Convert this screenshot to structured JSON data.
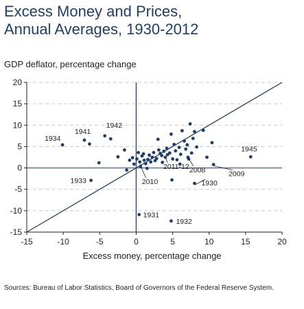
{
  "chart_data": {
    "type": "scatter",
    "title_line1": "Excess Money and Prices,",
    "title_line2": "Annual Averages, 1930-2012",
    "xlabel": "Excess money, percentage change",
    "ylabel": "GDP deflator, percentage change",
    "xlim": [
      -15,
      20
    ],
    "ylim": [
      -15,
      20
    ],
    "x_ticks": [
      -15,
      -10,
      -5,
      0,
      5,
      10,
      15,
      20
    ],
    "y_ticks": [
      -15,
      -10,
      -5,
      0,
      5,
      10,
      15,
      20
    ],
    "x_tick_labels": [
      "-15",
      "-10",
      "-5",
      "0",
      "5",
      "10",
      "15",
      "20"
    ],
    "y_tick_labels": [
      "-15",
      "-10",
      "-5",
      "0",
      "5",
      "10",
      "15",
      "20"
    ],
    "grid": "horizontal dashed",
    "reference_line": "45-degree line (y = x)",
    "marker_color": "#1f3f6b",
    "line_color": "#1f3f6b",
    "points": [
      {
        "x": -10.1,
        "y": 5.4,
        "label": "1934"
      },
      {
        "x": -7.1,
        "y": 6.5,
        "label": "1941"
      },
      {
        "x": -6.4,
        "y": 5.6
      },
      {
        "x": -4.3,
        "y": 7.5,
        "label": "1942"
      },
      {
        "x": -3.5,
        "y": 6.8
      },
      {
        "x": -5.1,
        "y": 1.2
      },
      {
        "x": -6.2,
        "y": -2.9,
        "label": "1933"
      },
      {
        "x": -2.5,
        "y": 2.6
      },
      {
        "x": -1.6,
        "y": 4.2
      },
      {
        "x": -1.3,
        "y": -0.5
      },
      {
        "x": -0.9,
        "y": 1.8
      },
      {
        "x": -0.5,
        "y": 2.4
      },
      {
        "x": -0.3,
        "y": 0.9
      },
      {
        "x": 0.1,
        "y": 2.1
      },
      {
        "x": 0.3,
        "y": 3.6
      },
      {
        "x": 0.5,
        "y": 1.4
      },
      {
        "x": 0.6,
        "y": 0.4,
        "label": "2010"
      },
      {
        "x": 0.8,
        "y": 2.8
      },
      {
        "x": 1.0,
        "y": 3.3
      },
      {
        "x": 1.1,
        "y": 1.8
      },
      {
        "x": 1.3,
        "y": 1.0
      },
      {
        "x": 1.5,
        "y": -0.1
      },
      {
        "x": 1.6,
        "y": 2.0
      },
      {
        "x": 1.8,
        "y": 3.0
      },
      {
        "x": 2.0,
        "y": 1.4
      },
      {
        "x": 2.2,
        "y": 2.5
      },
      {
        "x": 2.4,
        "y": 3.6
      },
      {
        "x": 2.6,
        "y": 1.7
      },
      {
        "x": 2.8,
        "y": 2.2
      },
      {
        "x": 3.0,
        "y": 6.7
      },
      {
        "x": 3.1,
        "y": 4.2
      },
      {
        "x": 3.3,
        "y": 3.4
      },
      {
        "x": 3.5,
        "y": 2.9
      },
      {
        "x": 3.6,
        "y": 1.3
      },
      {
        "x": 3.8,
        "y": 3.9
      },
      {
        "x": 4.0,
        "y": 2.5,
        "label": "2011-12"
      },
      {
        "x": 4.2,
        "y": 4.6
      },
      {
        "x": 4.3,
        "y": 3.1
      },
      {
        "x": 4.6,
        "y": 3.5
      },
      {
        "x": 4.8,
        "y": 7.9
      },
      {
        "x": 5.0,
        "y": 2.1
      },
      {
        "x": 5.2,
        "y": 5.5
      },
      {
        "x": 5.4,
        "y": 4.0
      },
      {
        "x": 5.6,
        "y": 1.9
      },
      {
        "x": 5.9,
        "y": 4.8
      },
      {
        "x": 6.1,
        "y": 3.2
      },
      {
        "x": 6.3,
        "y": 8.7
      },
      {
        "x": 6.6,
        "y": 6.3
      },
      {
        "x": 6.8,
        "y": 4.4
      },
      {
        "x": 7.0,
        "y": 5.4
      },
      {
        "x": 7.2,
        "y": 2.1
      },
      {
        "x": 7.4,
        "y": 10.3
      },
      {
        "x": 7.6,
        "y": 3.5
      },
      {
        "x": 7.8,
        "y": 6.9
      },
      {
        "x": 8.0,
        "y": 8.5
      },
      {
        "x": 8.3,
        "y": 4.9
      },
      {
        "x": 7.1,
        "y": 2.5,
        "label": "2008"
      },
      {
        "x": 9.2,
        "y": 8.8
      },
      {
        "x": 9.7,
        "y": 2.5
      },
      {
        "x": 10.4,
        "y": 5.9
      },
      {
        "x": 10.6,
        "y": 0.8,
        "label": "2009"
      },
      {
        "x": 6.0,
        "y": 0.9
      },
      {
        "x": 4.9,
        "y": -2.8
      },
      {
        "x": 8.0,
        "y": -3.6,
        "label": "1930"
      },
      {
        "x": 0.4,
        "y": -10.9,
        "label": "1931"
      },
      {
        "x": 4.8,
        "y": -12.4,
        "label": "1932"
      },
      {
        "x": 15.7,
        "y": 2.6,
        "label": "1945"
      }
    ],
    "annotations": [
      {
        "text": "1934",
        "x": -10.1,
        "y": 5.4
      },
      {
        "text": "1941",
        "x": -7.1,
        "y": 6.5
      },
      {
        "text": "1942",
        "x": -4.3,
        "y": 7.5
      },
      {
        "text": "1933",
        "x": -6.2,
        "y": -2.9
      },
      {
        "text": "2010",
        "x": 0.6,
        "y": 0.4
      },
      {
        "text": "2011-12",
        "x": 4.0,
        "y": 2.5
      },
      {
        "text": "2008",
        "x": 7.1,
        "y": 2.5
      },
      {
        "text": "1930",
        "x": 8.0,
        "y": -3.6
      },
      {
        "text": "2009",
        "x": 10.6,
        "y": 0.8
      },
      {
        "text": "1945",
        "x": 15.7,
        "y": 2.6
      },
      {
        "text": "1931",
        "x": 0.4,
        "y": -10.9
      },
      {
        "text": "1932",
        "x": 4.8,
        "y": -12.4
      }
    ]
  },
  "source": "Sources: Bureau of Labor Statistics, Board of Governors of the Federal Reserve System."
}
